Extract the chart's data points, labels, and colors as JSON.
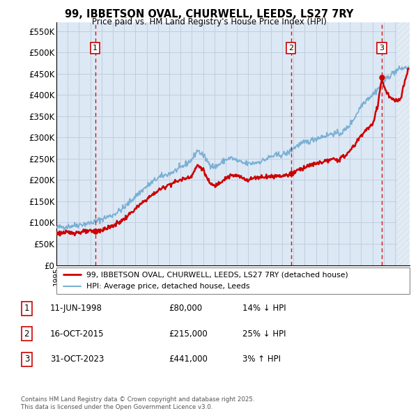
{
  "title": "99, IBBETSON OVAL, CHURWELL, LEEDS, LS27 7RY",
  "subtitle": "Price paid vs. HM Land Registry's House Price Index (HPI)",
  "ylabel_ticks": [
    "£0",
    "£50K",
    "£100K",
    "£150K",
    "£200K",
    "£250K",
    "£300K",
    "£350K",
    "£400K",
    "£450K",
    "£500K",
    "£550K"
  ],
  "ylim": [
    0,
    570000
  ],
  "xlim_start": 1995.0,
  "xlim_end": 2026.3,
  "transactions": [
    {
      "year": 1998.44,
      "price": 80000,
      "label": "1"
    },
    {
      "year": 2015.79,
      "price": 215000,
      "label": "2"
    },
    {
      "year": 2023.83,
      "price": 441000,
      "label": "3"
    }
  ],
  "legend_entries": [
    {
      "label": "99, IBBETSON OVAL, CHURWELL, LEEDS, LS27 7RY (detached house)",
      "color": "#cc0000",
      "lw": 2
    },
    {
      "label": "HPI: Average price, detached house, Leeds",
      "color": "#7ab0d4",
      "lw": 1.5
    }
  ],
  "table_rows": [
    {
      "num": "1",
      "date": "11-JUN-1998",
      "price": "£80,000",
      "hpi": "14% ↓ HPI"
    },
    {
      "num": "2",
      "date": "16-OCT-2015",
      "price": "£215,000",
      "hpi": "25% ↓ HPI"
    },
    {
      "num": "3",
      "date": "31-OCT-2023",
      "price": "£441,000",
      "hpi": "3% ↑ HPI"
    }
  ],
  "footer": "Contains HM Land Registry data © Crown copyright and database right 2025.\nThis data is licensed under the Open Government Licence v3.0.",
  "hpi_color": "#7ab0d4",
  "price_color": "#cc0000",
  "dashed_color": "#cc0000",
  "box_color": "#cc0000",
  "bg_color": "#dde8f5",
  "grid_color": "#c0cedf"
}
